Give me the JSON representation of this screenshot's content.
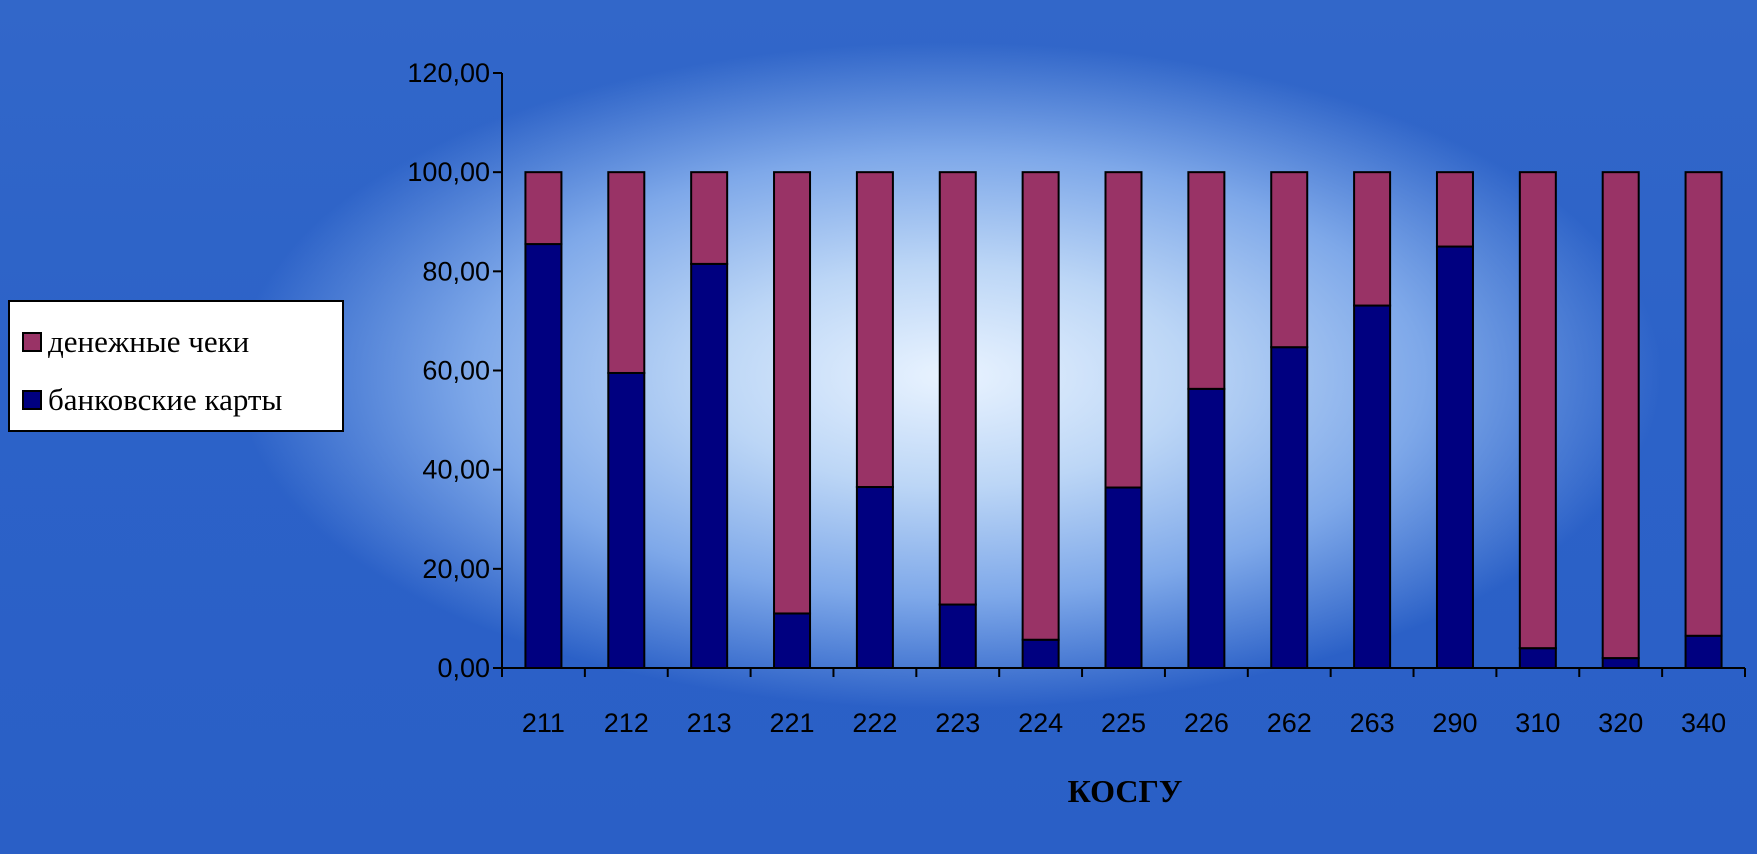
{
  "colors": {
    "cheques": "#993366",
    "cards": "#000080"
  },
  "legend": {
    "items": [
      {
        "key": "cheques",
        "label": "денежные чеки"
      },
      {
        "key": "cards",
        "label": "банковские карты"
      }
    ]
  },
  "chart_data": {
    "type": "bar",
    "stacked": true,
    "title": "",
    "xlabel": "КОСГУ",
    "ylabel": "",
    "ylim": [
      0,
      120
    ],
    "yticks": [
      "0,00",
      "20,00",
      "40,00",
      "60,00",
      "80,00",
      "100,00",
      "120,00"
    ],
    "categories": [
      "211",
      "212",
      "213",
      "221",
      "222",
      "223",
      "224",
      "225",
      "226",
      "262",
      "263",
      "290",
      "310",
      "320",
      "340"
    ],
    "series": [
      {
        "name": "банковские карты",
        "values": [
          85.5,
          59.5,
          81.5,
          11.0,
          36.5,
          12.8,
          5.7,
          36.4,
          56.3,
          64.7,
          73.1,
          85.0,
          4.0,
          2.0,
          6.5
        ]
      },
      {
        "name": "денежные чеки",
        "values": [
          14.5,
          40.5,
          18.5,
          89.0,
          63.5,
          87.2,
          94.3,
          63.6,
          43.7,
          35.3,
          26.9,
          15.0,
          96.0,
          98.0,
          93.5
        ]
      }
    ],
    "grid": false,
    "legend_position": "left"
  }
}
